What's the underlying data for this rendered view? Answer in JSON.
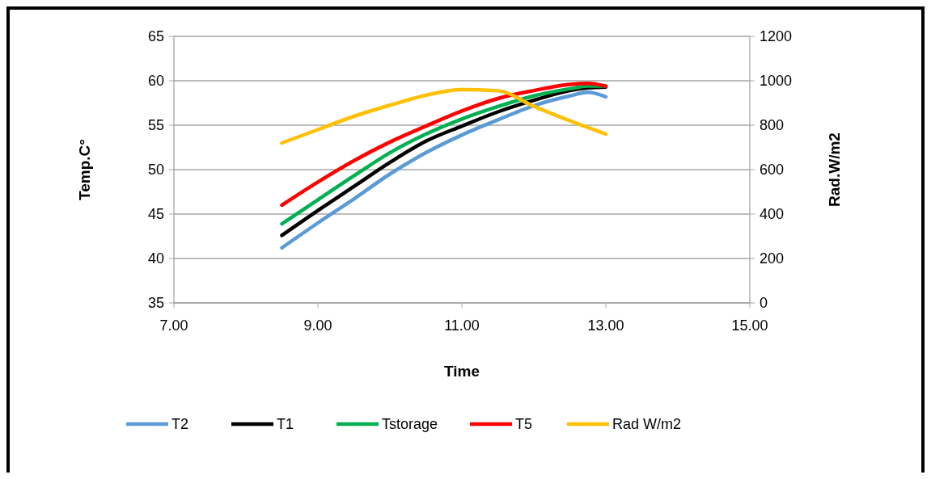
{
  "chart_data": {
    "type": "line",
    "xlabel": "Time",
    "ylabel": "Temp.C°",
    "y2label": "Rad.W/m2",
    "x": [
      8.5,
      9,
      9.5,
      10,
      10.5,
      11,
      11.5,
      12,
      12.5,
      12.75,
      13
    ],
    "series": [
      {
        "name": "T2",
        "color": "#5b9bd5",
        "values": [
          41.2,
          44.0,
          46.7,
          49.5,
          51.9,
          53.9,
          55.6,
          57.2,
          58.3,
          58.7,
          58.2
        ]
      },
      {
        "name": "T1",
        "color": "#000000",
        "values": [
          42.6,
          45.4,
          48.1,
          50.8,
          53.2,
          54.9,
          56.5,
          57.8,
          58.9,
          59.2,
          59.3
        ]
      },
      {
        "name": "Tstorage",
        "color": "#00b050",
        "values": [
          43.9,
          46.6,
          49.3,
          51.9,
          54.0,
          55.7,
          57.1,
          58.3,
          59.1,
          59.4,
          59.4
        ]
      },
      {
        "name": "T5",
        "color": "#ff0000",
        "values": [
          46.0,
          48.6,
          51.0,
          53.1,
          54.9,
          56.6,
          58.0,
          58.9,
          59.6,
          59.7,
          59.4
        ]
      },
      {
        "name": "Rad W/m2",
        "color": "#ffc000",
        "axis": "y2",
        "values": [
          720,
          780,
          840,
          890,
          935,
          960,
          955,
          885,
          820,
          790,
          760
        ]
      }
    ],
    "xlim": [
      7,
      15
    ],
    "xticks": [
      {
        "value": 7,
        "label": "7.00"
      },
      {
        "value": 9,
        "label": "9.00"
      },
      {
        "value": 11,
        "label": "11.00"
      },
      {
        "value": 13,
        "label": "13.00"
      },
      {
        "value": 15,
        "label": "15.00"
      }
    ],
    "ylim": [
      35,
      65
    ],
    "yticks": [
      35,
      40,
      45,
      50,
      55,
      60,
      65
    ],
    "y2lim": [
      0,
      1200
    ],
    "y2ticks": [
      0,
      200,
      400,
      600,
      800,
      1000,
      1200
    ],
    "grid": "y",
    "legend": "bottom",
    "marker": "none",
    "line_style": "solid"
  }
}
